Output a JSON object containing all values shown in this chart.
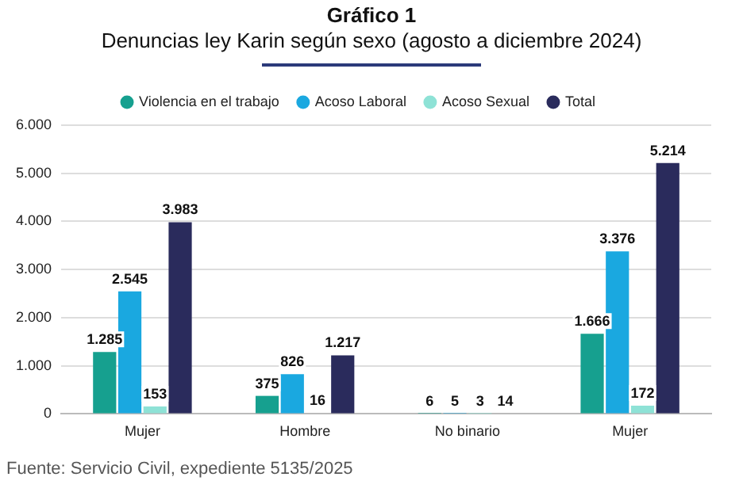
{
  "chart_data": {
    "type": "bar",
    "title": "Gráfico 1",
    "subtitle": "Denuncias ley Karin según sexo (agosto a diciembre 2024)",
    "categories": [
      "Mujer",
      "Hombre",
      "No binario",
      "Mujer"
    ],
    "series": [
      {
        "name": "Violencia en el trabajo",
        "color": "#16a08f",
        "values": [
          1285,
          375,
          6,
          1666
        ],
        "value_labels": [
          "1.285",
          "375",
          "6",
          "1.666"
        ]
      },
      {
        "name": "Acoso Laboral",
        "color": "#1aa8e0",
        "values": [
          2545,
          826,
          5,
          3376
        ],
        "value_labels": [
          "2.545",
          "826",
          "5",
          "3.376"
        ]
      },
      {
        "name": "Acoso Sexual",
        "color": "#8ee2d6",
        "values": [
          153,
          16,
          3,
          172
        ],
        "value_labels": [
          "153",
          "16",
          "3",
          "172"
        ]
      },
      {
        "name": "Total",
        "color": "#2a2b5c",
        "values": [
          3983,
          1217,
          14,
          5214
        ],
        "value_labels": [
          "3.983",
          "1.217",
          "14",
          "5.214"
        ]
      }
    ],
    "ylim": [
      0,
      6000
    ],
    "yticks": [
      {
        "value": 0,
        "label": "0"
      },
      {
        "value": 1000,
        "label": "1.000"
      },
      {
        "value": 2000,
        "label": "2.000"
      },
      {
        "value": 3000,
        "label": "3.000"
      },
      {
        "value": 4000,
        "label": "4.000"
      },
      {
        "value": 5000,
        "label": "5.000"
      },
      {
        "value": 6000,
        "label": "6.000"
      }
    ],
    "grid": "y",
    "legend": "top",
    "annotations": [
      "Fuente: Servicio Civil, expediente 5135/2025"
    ]
  }
}
